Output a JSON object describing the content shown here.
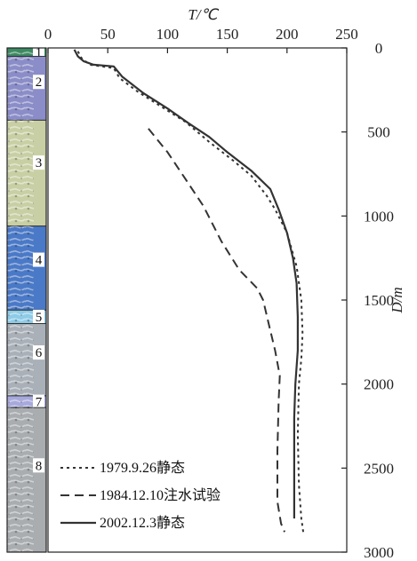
{
  "chart_data": {
    "type": "line",
    "title": "",
    "xlabel": "T/℃",
    "ylabel": "D/m",
    "xlim": [
      0,
      250
    ],
    "ylim": [
      3000,
      0
    ],
    "x_axis_position": "top",
    "y_axis_position": "right",
    "x_ticks": [
      "0",
      "50",
      "100",
      "150",
      "200",
      "250"
    ],
    "y_ticks": [
      "0",
      "500",
      "1000",
      "1500",
      "2000",
      "2500",
      "3000"
    ],
    "legend_position": "bottom-left",
    "series": [
      {
        "name": "1979.9.26静态",
        "style": "dotted",
        "color": "#333333",
        "points": [
          [
            25,
            20
          ],
          [
            28,
            60
          ],
          [
            35,
            100
          ],
          [
            55,
            120
          ],
          [
            60,
            180
          ],
          [
            75,
            260
          ],
          [
            95,
            350
          ],
          [
            115,
            440
          ],
          [
            135,
            560
          ],
          [
            155,
            670
          ],
          [
            170,
            760
          ],
          [
            183,
            880
          ],
          [
            190,
            960
          ],
          [
            200,
            1100
          ],
          [
            208,
            1300
          ],
          [
            212,
            1500
          ],
          [
            213,
            1700
          ],
          [
            212,
            1850
          ],
          [
            210,
            2000
          ],
          [
            209,
            2300
          ],
          [
            210,
            2600
          ],
          [
            212,
            2800
          ],
          [
            214,
            2900
          ]
        ]
      },
      {
        "name": "1984.12.10注水试验",
        "style": "dashed",
        "color": "#333333",
        "points": [
          [
            84,
            480
          ],
          [
            100,
            620
          ],
          [
            115,
            780
          ],
          [
            130,
            940
          ],
          [
            145,
            1150
          ],
          [
            160,
            1320
          ],
          [
            175,
            1430
          ],
          [
            180,
            1500
          ],
          [
            185,
            1650
          ],
          [
            190,
            1800
          ],
          [
            194,
            1950
          ],
          [
            193,
            2100
          ],
          [
            192,
            2400
          ],
          [
            192,
            2700
          ],
          [
            195,
            2830
          ],
          [
            198,
            2880
          ]
        ]
      },
      {
        "name": "2002.12.3静态",
        "style": "solid",
        "color": "#333333",
        "points": [
          [
            22,
            10
          ],
          [
            25,
            50
          ],
          [
            30,
            80
          ],
          [
            38,
            100
          ],
          [
            55,
            110
          ],
          [
            62,
            170
          ],
          [
            80,
            270
          ],
          [
            100,
            360
          ],
          [
            118,
            450
          ],
          [
            135,
            530
          ],
          [
            150,
            620
          ],
          [
            170,
            730
          ],
          [
            186,
            840
          ],
          [
            193,
            960
          ],
          [
            200,
            1100
          ],
          [
            205,
            1250
          ],
          [
            208,
            1400
          ],
          [
            209,
            1600
          ],
          [
            209,
            1800
          ],
          [
            207,
            2000
          ],
          [
            206,
            2200
          ],
          [
            206,
            2500
          ],
          [
            206,
            2800
          ]
        ]
      }
    ]
  },
  "strata": {
    "layers": [
      {
        "label": "1",
        "top": 0,
        "bottom": 50,
        "color": "#3d8a62"
      },
      {
        "label": "2",
        "top": 50,
        "bottom": 430,
        "color": "#8a8dc8"
      },
      {
        "label": "3",
        "top": 430,
        "bottom": 1060,
        "color": "#c9cfa4"
      },
      {
        "label": "4",
        "top": 1060,
        "bottom": 1560,
        "color": "#4a79c7"
      },
      {
        "label": "5",
        "top": 1560,
        "bottom": 1640,
        "color": "#8dcbe8"
      },
      {
        "label": "6",
        "top": 1640,
        "bottom": 2070,
        "color": "#a9b0b8"
      },
      {
        "label": "7",
        "top": 2070,
        "bottom": 2140,
        "color": "#a7a9dc"
      },
      {
        "label": "8",
        "top": 2140,
        "bottom": 3000,
        "color": "#a9adb0"
      }
    ]
  }
}
